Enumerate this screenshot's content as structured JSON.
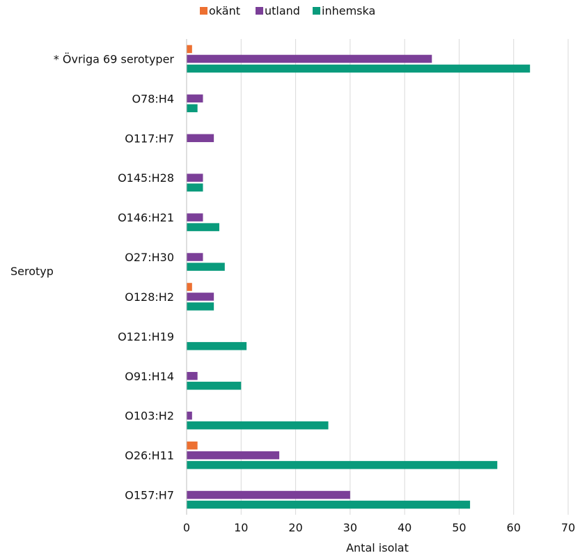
{
  "chart_data": {
    "type": "bar",
    "orientation": "horizontal",
    "ylabel": "Serotyp",
    "xlabel": "Antal isolat",
    "xlim": [
      0,
      70
    ],
    "xticks": [
      0,
      10,
      20,
      30,
      40,
      50,
      60,
      70
    ],
    "grid": "vertical",
    "legend_position": "top",
    "categories": [
      "* Övriga 69 serotyper",
      "O78:H4",
      "O117:H7",
      "O145:H28",
      "O146:H21",
      "O27:H30",
      "O128:H2",
      "O121:H19",
      "O91:H14",
      "O103:H2",
      "O26:H11",
      "O157:H7"
    ],
    "series": [
      {
        "name": "okänt",
        "color": "#ed7031",
        "values": [
          1,
          0,
          0,
          0,
          0,
          0,
          1,
          0,
          0,
          0,
          2,
          0
        ]
      },
      {
        "name": "utland",
        "color": "#7b3f98",
        "values": [
          45,
          3,
          5,
          3,
          3,
          3,
          5,
          0,
          2,
          1,
          17,
          30
        ]
      },
      {
        "name": "inhemska",
        "color": "#099b7c",
        "values": [
          63,
          2,
          0,
          3,
          6,
          7,
          5,
          11,
          10,
          26,
          57,
          52
        ]
      }
    ]
  }
}
